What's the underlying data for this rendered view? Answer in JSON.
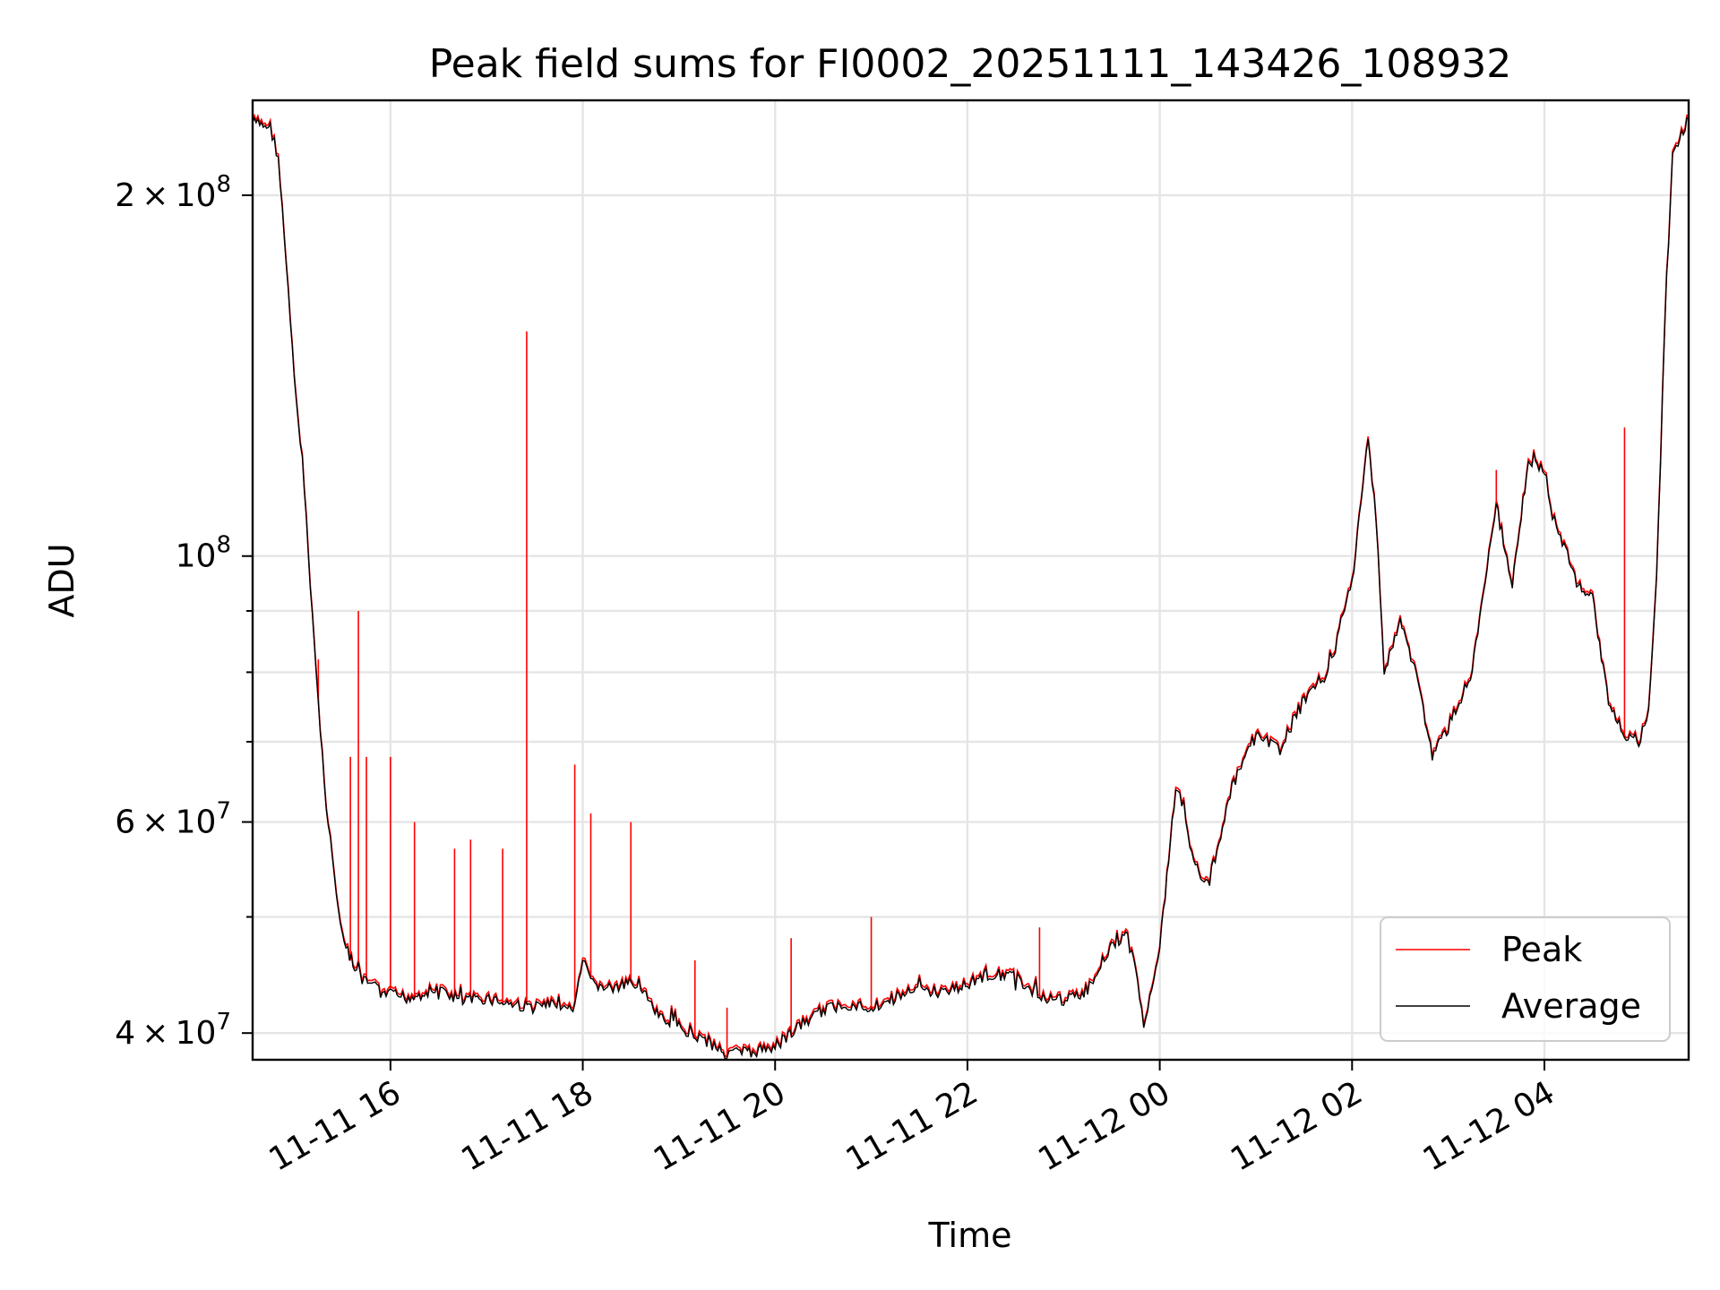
{
  "chart_data": {
    "type": "line",
    "title": "Peak field sums for FI0002_20251111_143426_108932",
    "xlabel": "Time",
    "ylabel": "ADU",
    "y_scale": "log",
    "grid": true,
    "legend_position": "lower-right",
    "xlim": [
      "2025-11-11 14:34",
      "2025-11-12 05:30"
    ],
    "ylim": [
      38000000,
      240000000
    ],
    "x_ticks": [
      {
        "value": "2025-11-11 16:00",
        "label": "11-11 16"
      },
      {
        "value": "2025-11-11 18:00",
        "label": "11-11 18"
      },
      {
        "value": "2025-11-11 20:00",
        "label": "11-11 20"
      },
      {
        "value": "2025-11-11 22:00",
        "label": "11-11 22"
      },
      {
        "value": "2025-11-12 00:00",
        "label": "11-12 00"
      },
      {
        "value": "2025-11-12 02:00",
        "label": "11-12 02"
      },
      {
        "value": "2025-11-12 04:00",
        "label": "11-12 04"
      }
    ],
    "y_major_ticks": [
      {
        "value": 40000000,
        "mantissa": "4",
        "base": "10",
        "exp": "7"
      },
      {
        "value": 60000000,
        "mantissa": "6",
        "base": "10",
        "exp": "7"
      },
      {
        "value": 100000000,
        "mantissa": "",
        "base": "10",
        "exp": "8"
      },
      {
        "value": 200000000,
        "mantissa": "2",
        "base": "10",
        "exp": "8"
      }
    ],
    "y_minor_ticks": [
      50000000,
      70000000,
      80000000,
      90000000
    ],
    "legend": [
      {
        "name": "Peak",
        "color": "#ff0000"
      },
      {
        "name": "Average",
        "color": "#000000"
      }
    ],
    "series": [
      {
        "name": "Average",
        "color": "#000000",
        "points": [
          [
            "2025-11-11 14:34",
            230000000
          ],
          [
            "2025-11-11 14:45",
            228000000
          ],
          [
            "2025-11-11 14:50",
            215000000
          ],
          [
            "2025-11-11 14:55",
            175000000
          ],
          [
            "2025-11-11 15:00",
            140000000
          ],
          [
            "2025-11-11 15:05",
            120000000
          ],
          [
            "2025-11-11 15:10",
            95000000
          ],
          [
            "2025-11-11 15:15",
            75000000
          ],
          [
            "2025-11-11 15:20",
            62000000
          ],
          [
            "2025-11-11 15:25",
            54000000
          ],
          [
            "2025-11-11 15:30",
            48000000
          ],
          [
            "2025-11-11 15:40",
            44500000
          ],
          [
            "2025-11-11 15:55",
            43200000
          ],
          [
            "2025-11-11 16:10",
            42800000
          ],
          [
            "2025-11-11 16:30",
            43500000
          ],
          [
            "2025-11-11 16:45",
            42500000
          ],
          [
            "2025-11-11 17:00",
            42800000
          ],
          [
            "2025-11-11 17:15",
            42300000
          ],
          [
            "2025-11-11 17:30",
            42000000
          ],
          [
            "2025-11-11 17:45",
            42400000
          ],
          [
            "2025-11-11 17:55",
            41800000
          ],
          [
            "2025-11-11 18:00",
            46000000
          ],
          [
            "2025-11-11 18:05",
            44000000
          ],
          [
            "2025-11-11 18:20",
            43500000
          ],
          [
            "2025-11-11 18:35",
            44200000
          ],
          [
            "2025-11-11 18:45",
            41500000
          ],
          [
            "2025-11-11 19:00",
            40500000
          ],
          [
            "2025-11-11 19:15",
            39500000
          ],
          [
            "2025-11-11 19:30",
            38600000
          ],
          [
            "2025-11-11 19:45",
            38500000
          ],
          [
            "2025-11-11 20:00",
            39000000
          ],
          [
            "2025-11-11 20:15",
            40500000
          ],
          [
            "2025-11-11 20:30",
            41800000
          ],
          [
            "2025-11-11 20:45",
            42300000
          ],
          [
            "2025-11-11 21:00",
            42000000
          ],
          [
            "2025-11-11 21:15",
            42800000
          ],
          [
            "2025-11-11 21:30",
            43500000
          ],
          [
            "2025-11-11 21:45",
            43200000
          ],
          [
            "2025-11-11 22:00",
            44000000
          ],
          [
            "2025-11-11 22:15",
            44800000
          ],
          [
            "2025-11-11 22:30",
            44500000
          ],
          [
            "2025-11-11 22:45",
            43000000
          ],
          [
            "2025-11-11 23:00",
            42500000
          ],
          [
            "2025-11-11 23:15",
            43500000
          ],
          [
            "2025-11-11 23:30",
            47500000
          ],
          [
            "2025-11-11 23:40",
            48000000
          ],
          [
            "2025-11-11 23:45",
            45000000
          ],
          [
            "2025-11-11 23:50",
            40500000
          ],
          [
            "2025-11-11 23:55",
            44000000
          ],
          [
            "2025-11-12 00:00",
            47000000
          ],
          [
            "2025-11-12 00:10",
            64000000
          ],
          [
            "2025-11-12 00:15",
            62000000
          ],
          [
            "2025-11-12 00:20",
            56000000
          ],
          [
            "2025-11-12 00:30",
            53000000
          ],
          [
            "2025-11-12 00:45",
            64000000
          ],
          [
            "2025-11-12 01:00",
            71000000
          ],
          [
            "2025-11-12 01:15",
            69000000
          ],
          [
            "2025-11-12 01:30",
            76000000
          ],
          [
            "2025-11-12 01:45",
            80000000
          ],
          [
            "2025-11-12 02:00",
            95000000
          ],
          [
            "2025-11-12 02:10",
            125000000
          ],
          [
            "2025-11-12 02:15",
            108000000
          ],
          [
            "2025-11-12 02:20",
            80000000
          ],
          [
            "2025-11-12 02:30",
            88000000
          ],
          [
            "2025-11-12 02:40",
            80000000
          ],
          [
            "2025-11-12 02:50",
            68000000
          ],
          [
            "2025-11-12 03:00",
            72000000
          ],
          [
            "2025-11-12 03:15",
            80000000
          ],
          [
            "2025-11-12 03:30",
            110000000
          ],
          [
            "2025-11-12 03:40",
            95000000
          ],
          [
            "2025-11-12 03:50",
            120000000
          ],
          [
            "2025-11-12 04:00",
            118000000
          ],
          [
            "2025-11-12 04:05",
            108000000
          ],
          [
            "2025-11-12 04:10",
            104000000
          ],
          [
            "2025-11-12 04:20",
            95000000
          ],
          [
            "2025-11-12 04:30",
            92000000
          ],
          [
            "2025-11-12 04:40",
            76000000
          ],
          [
            "2025-11-12 04:50",
            71000000
          ],
          [
            "2025-11-12 05:00",
            70000000
          ],
          [
            "2025-11-12 05:05",
            75000000
          ],
          [
            "2025-11-12 05:10",
            95000000
          ],
          [
            "2025-11-12 05:15",
            155000000
          ],
          [
            "2025-11-12 05:20",
            215000000
          ],
          [
            "2025-11-12 05:30",
            232000000
          ]
        ]
      },
      {
        "name": "Peak",
        "color": "#ff0000",
        "spikes": [
          [
            "2025-11-11 15:15",
            82000000
          ],
          [
            "2025-11-11 15:35",
            68000000
          ],
          [
            "2025-11-11 15:40",
            90000000
          ],
          [
            "2025-11-11 15:45",
            68000000
          ],
          [
            "2025-11-11 16:00",
            68000000
          ],
          [
            "2025-11-11 16:15",
            60000000
          ],
          [
            "2025-11-11 16:40",
            57000000
          ],
          [
            "2025-11-11 16:50",
            58000000
          ],
          [
            "2025-11-11 17:10",
            57000000
          ],
          [
            "2025-11-11 17:25",
            154000000
          ],
          [
            "2025-11-11 17:55",
            67000000
          ],
          [
            "2025-11-11 18:05",
            61000000
          ],
          [
            "2025-11-11 18:30",
            60000000
          ],
          [
            "2025-11-11 19:10",
            46000000
          ],
          [
            "2025-11-11 19:30",
            42000000
          ],
          [
            "2025-11-11 20:10",
            48000000
          ],
          [
            "2025-11-11 21:00",
            50000000
          ],
          [
            "2025-11-11 22:45",
            49000000
          ],
          [
            "2025-11-12 03:30",
            118000000
          ],
          [
            "2025-11-12 04:50",
            128000000
          ]
        ]
      }
    ]
  }
}
